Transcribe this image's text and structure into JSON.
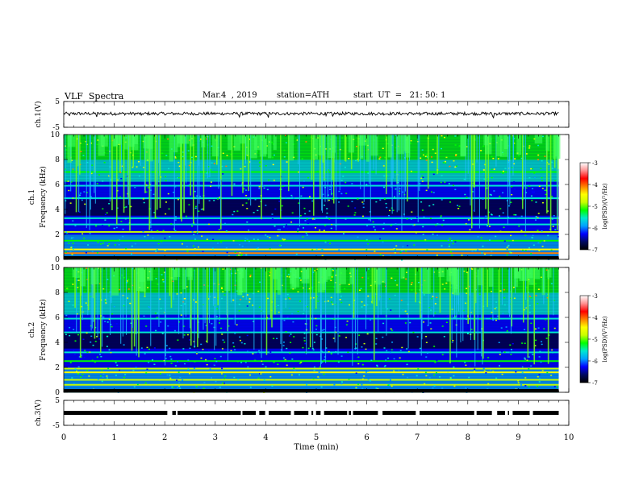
{
  "header": {
    "title": "VLF  Spectra",
    "date": "Mar.4  , 2019",
    "station": "station=ATH",
    "start": "start  UT  =   21: 50: 1"
  },
  "colorscale": {
    "label": "log(PSD)(V²/Hz)",
    "min": -7,
    "max": -3,
    "ticks": [
      "-3",
      "-4",
      "-5",
      "-6",
      "-7"
    ],
    "stops": [
      "#000000",
      "#000a60",
      "#0000ff",
      "#00a0ff",
      "#00e8d0",
      "#00ff00",
      "#c8ff00",
      "#ffff00",
      "#ff8000",
      "#ff0000",
      "#ff9090",
      "#ffffff"
    ]
  },
  "chart_data": [
    {
      "type": "line",
      "panel": "ch1-waveform",
      "ylabel": "ch.1(V)",
      "ylim": [
        -5,
        5
      ],
      "yticks": [
        "5",
        "-5"
      ],
      "xlim": [
        0,
        10
      ],
      "x_extent": [
        0,
        9.8
      ],
      "approx_mean_v": 0.3,
      "approx_spread_v": 0.6,
      "spikes_at_min": [
        0.12,
        0.65,
        1.53,
        3.48,
        4.05,
        5.2,
        5.33,
        7.05,
        8.5
      ]
    },
    {
      "type": "heatmap",
      "panel": "ch1-spectrogram",
      "ylabel_top": "ch.1",
      "ylabel": "Frequency  (kHz)",
      "ylim": [
        0,
        10
      ],
      "yticks": [
        "0",
        "2",
        "4",
        "6",
        "8",
        "10"
      ],
      "xlim": [
        0,
        10
      ],
      "x_extent": [
        0,
        9.8
      ],
      "value_range": [
        -7,
        -3
      ],
      "bands_khz": [
        {
          "f": 0.5,
          "level": -4.2
        },
        {
          "f": 0.8,
          "level": -4.6
        },
        {
          "f": 1.5,
          "level": -5.3
        },
        {
          "f": 2.2,
          "level": -5.0
        },
        {
          "f": 2.8,
          "level": -5.4
        },
        {
          "f": 3.3,
          "level": -5.5
        },
        {
          "f": 4.9,
          "level": -5.6
        },
        {
          "f": 5.9,
          "level": -5.6
        },
        {
          "f": 7.0,
          "level": -5.3
        }
      ]
    },
    {
      "type": "heatmap",
      "panel": "ch2-spectrogram",
      "ylabel_top": "ch.2",
      "ylabel": "Frequency  (kHz)",
      "ylim": [
        0,
        10
      ],
      "yticks": [
        "0",
        "2",
        "4",
        "6",
        "8",
        "10"
      ],
      "xlim": [
        0,
        10
      ],
      "x_extent": [
        0,
        9.8
      ],
      "value_range": [
        -7,
        -3
      ],
      "bands_khz": [
        {
          "f": 0.6,
          "level": -5.0
        },
        {
          "f": 1.0,
          "level": -4.9
        },
        {
          "f": 1.6,
          "level": -4.6
        },
        {
          "f": 1.9,
          "level": -4.9
        },
        {
          "f": 2.5,
          "level": -5.2
        },
        {
          "f": 3.2,
          "level": -5.5
        },
        {
          "f": 4.8,
          "level": -5.6
        },
        {
          "f": 5.9,
          "level": -5.6
        }
      ]
    },
    {
      "type": "line",
      "panel": "ch3-waveform",
      "ylabel": "ch.3(V)",
      "ylim": [
        -5,
        5
      ],
      "yticks": [
        "5",
        "-5"
      ],
      "xlim": [
        0,
        10
      ],
      "x_extent": [
        0,
        9.8
      ],
      "level_v": 0,
      "xlabel": "Time  (min)",
      "xticks": [
        "0",
        "1",
        "2",
        "3",
        "4",
        "5",
        "6",
        "7",
        "8",
        "9",
        "10"
      ]
    }
  ]
}
